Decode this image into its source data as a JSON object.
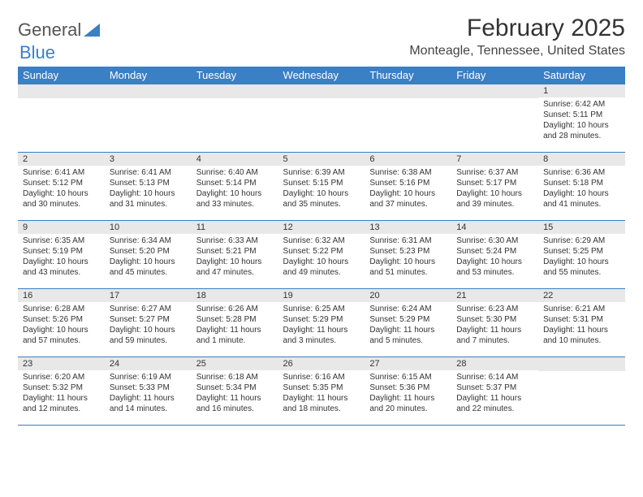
{
  "brand": {
    "part1": "General",
    "part2": "Blue"
  },
  "title": "February 2025",
  "location": "Monteagle, Tennessee, United States",
  "weekdays": [
    "Sunday",
    "Monday",
    "Tuesday",
    "Wednesday",
    "Thursday",
    "Friday",
    "Saturday"
  ],
  "colors": {
    "header_bg": "#3b7fc4",
    "header_text": "#ffffff",
    "daynum_bg": "#e8e8e8",
    "border": "#3b7fc4",
    "text": "#333333",
    "background": "#ffffff"
  },
  "weeks": [
    [
      {
        "day": "",
        "sunrise": "",
        "sunset": "",
        "daylight": ""
      },
      {
        "day": "",
        "sunrise": "",
        "sunset": "",
        "daylight": ""
      },
      {
        "day": "",
        "sunrise": "",
        "sunset": "",
        "daylight": ""
      },
      {
        "day": "",
        "sunrise": "",
        "sunset": "",
        "daylight": ""
      },
      {
        "day": "",
        "sunrise": "",
        "sunset": "",
        "daylight": ""
      },
      {
        "day": "",
        "sunrise": "",
        "sunset": "",
        "daylight": ""
      },
      {
        "day": "1",
        "sunrise": "Sunrise: 6:42 AM",
        "sunset": "Sunset: 5:11 PM",
        "daylight": "Daylight: 10 hours and 28 minutes."
      }
    ],
    [
      {
        "day": "2",
        "sunrise": "Sunrise: 6:41 AM",
        "sunset": "Sunset: 5:12 PM",
        "daylight": "Daylight: 10 hours and 30 minutes."
      },
      {
        "day": "3",
        "sunrise": "Sunrise: 6:41 AM",
        "sunset": "Sunset: 5:13 PM",
        "daylight": "Daylight: 10 hours and 31 minutes."
      },
      {
        "day": "4",
        "sunrise": "Sunrise: 6:40 AM",
        "sunset": "Sunset: 5:14 PM",
        "daylight": "Daylight: 10 hours and 33 minutes."
      },
      {
        "day": "5",
        "sunrise": "Sunrise: 6:39 AM",
        "sunset": "Sunset: 5:15 PM",
        "daylight": "Daylight: 10 hours and 35 minutes."
      },
      {
        "day": "6",
        "sunrise": "Sunrise: 6:38 AM",
        "sunset": "Sunset: 5:16 PM",
        "daylight": "Daylight: 10 hours and 37 minutes."
      },
      {
        "day": "7",
        "sunrise": "Sunrise: 6:37 AM",
        "sunset": "Sunset: 5:17 PM",
        "daylight": "Daylight: 10 hours and 39 minutes."
      },
      {
        "day": "8",
        "sunrise": "Sunrise: 6:36 AM",
        "sunset": "Sunset: 5:18 PM",
        "daylight": "Daylight: 10 hours and 41 minutes."
      }
    ],
    [
      {
        "day": "9",
        "sunrise": "Sunrise: 6:35 AM",
        "sunset": "Sunset: 5:19 PM",
        "daylight": "Daylight: 10 hours and 43 minutes."
      },
      {
        "day": "10",
        "sunrise": "Sunrise: 6:34 AM",
        "sunset": "Sunset: 5:20 PM",
        "daylight": "Daylight: 10 hours and 45 minutes."
      },
      {
        "day": "11",
        "sunrise": "Sunrise: 6:33 AM",
        "sunset": "Sunset: 5:21 PM",
        "daylight": "Daylight: 10 hours and 47 minutes."
      },
      {
        "day": "12",
        "sunrise": "Sunrise: 6:32 AM",
        "sunset": "Sunset: 5:22 PM",
        "daylight": "Daylight: 10 hours and 49 minutes."
      },
      {
        "day": "13",
        "sunrise": "Sunrise: 6:31 AM",
        "sunset": "Sunset: 5:23 PM",
        "daylight": "Daylight: 10 hours and 51 minutes."
      },
      {
        "day": "14",
        "sunrise": "Sunrise: 6:30 AM",
        "sunset": "Sunset: 5:24 PM",
        "daylight": "Daylight: 10 hours and 53 minutes."
      },
      {
        "day": "15",
        "sunrise": "Sunrise: 6:29 AM",
        "sunset": "Sunset: 5:25 PM",
        "daylight": "Daylight: 10 hours and 55 minutes."
      }
    ],
    [
      {
        "day": "16",
        "sunrise": "Sunrise: 6:28 AM",
        "sunset": "Sunset: 5:26 PM",
        "daylight": "Daylight: 10 hours and 57 minutes."
      },
      {
        "day": "17",
        "sunrise": "Sunrise: 6:27 AM",
        "sunset": "Sunset: 5:27 PM",
        "daylight": "Daylight: 10 hours and 59 minutes."
      },
      {
        "day": "18",
        "sunrise": "Sunrise: 6:26 AM",
        "sunset": "Sunset: 5:28 PM",
        "daylight": "Daylight: 11 hours and 1 minute."
      },
      {
        "day": "19",
        "sunrise": "Sunrise: 6:25 AM",
        "sunset": "Sunset: 5:29 PM",
        "daylight": "Daylight: 11 hours and 3 minutes."
      },
      {
        "day": "20",
        "sunrise": "Sunrise: 6:24 AM",
        "sunset": "Sunset: 5:29 PM",
        "daylight": "Daylight: 11 hours and 5 minutes."
      },
      {
        "day": "21",
        "sunrise": "Sunrise: 6:23 AM",
        "sunset": "Sunset: 5:30 PM",
        "daylight": "Daylight: 11 hours and 7 minutes."
      },
      {
        "day": "22",
        "sunrise": "Sunrise: 6:21 AM",
        "sunset": "Sunset: 5:31 PM",
        "daylight": "Daylight: 11 hours and 10 minutes."
      }
    ],
    [
      {
        "day": "23",
        "sunrise": "Sunrise: 6:20 AM",
        "sunset": "Sunset: 5:32 PM",
        "daylight": "Daylight: 11 hours and 12 minutes."
      },
      {
        "day": "24",
        "sunrise": "Sunrise: 6:19 AM",
        "sunset": "Sunset: 5:33 PM",
        "daylight": "Daylight: 11 hours and 14 minutes."
      },
      {
        "day": "25",
        "sunrise": "Sunrise: 6:18 AM",
        "sunset": "Sunset: 5:34 PM",
        "daylight": "Daylight: 11 hours and 16 minutes."
      },
      {
        "day": "26",
        "sunrise": "Sunrise: 6:16 AM",
        "sunset": "Sunset: 5:35 PM",
        "daylight": "Daylight: 11 hours and 18 minutes."
      },
      {
        "day": "27",
        "sunrise": "Sunrise: 6:15 AM",
        "sunset": "Sunset: 5:36 PM",
        "daylight": "Daylight: 11 hours and 20 minutes."
      },
      {
        "day": "28",
        "sunrise": "Sunrise: 6:14 AM",
        "sunset": "Sunset: 5:37 PM",
        "daylight": "Daylight: 11 hours and 22 minutes."
      },
      {
        "day": "",
        "sunrise": "",
        "sunset": "",
        "daylight": ""
      }
    ]
  ]
}
